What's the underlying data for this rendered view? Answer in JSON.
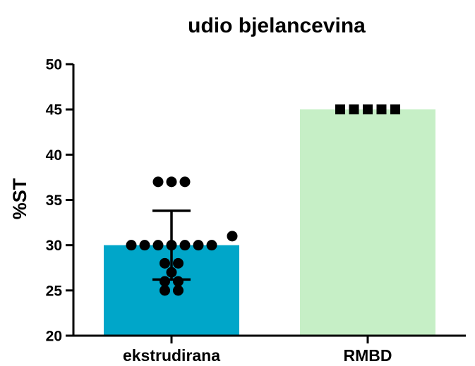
{
  "chart_data": {
    "type": "bar",
    "title": "udio bjelancevina",
    "xlabel": "",
    "ylabel": "%ST",
    "ylim": [
      20,
      50
    ],
    "yticks": [
      20,
      25,
      30,
      35,
      40,
      45,
      50
    ],
    "grid": false,
    "categories": [
      "ekstrudirana",
      "RMBD"
    ],
    "values": [
      30.0,
      45.0
    ],
    "colors": [
      "#00a6c9",
      "#c6efc6"
    ],
    "error_bars": [
      {
        "category": "ekstrudirana",
        "low": 26.2,
        "high": 33.8
      },
      null
    ],
    "points": [
      {
        "category": "ekstrudirana",
        "marker": "circle",
        "values": [
          37,
          37,
          37,
          31,
          30,
          30,
          30,
          30,
          30,
          30,
          30,
          28,
          28,
          27,
          26,
          26,
          25,
          25
        ]
      },
      {
        "category": "RMBD",
        "marker": "square",
        "values": [
          45,
          45,
          45,
          45,
          45
        ]
      }
    ]
  }
}
